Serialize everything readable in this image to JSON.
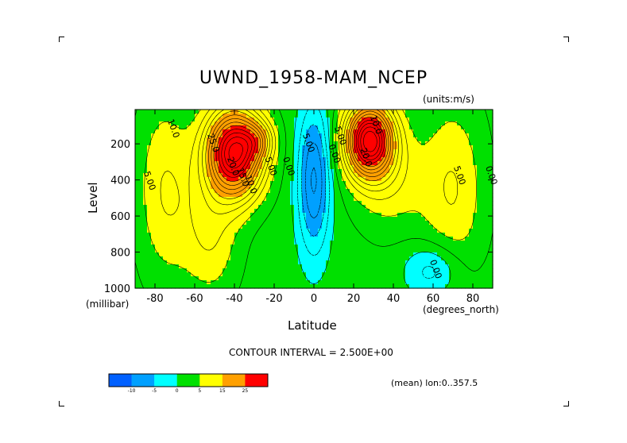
{
  "title": "UWND_1958-MAM_NCEP",
  "units_label": "(units:m/s)",
  "contour_interval_label": "CONTOUR INTERVAL = 2.500E+00",
  "mean_label": "(mean) lon:0..357.5",
  "chart_data": {
    "type": "heatmap",
    "title": "UWND_1958-MAM_NCEP",
    "xlabel": "Latitude",
    "xunit": "(degrees_north)",
    "ylabel": "Level",
    "yunit": "(millibar)",
    "xlim": [
      -90,
      90
    ],
    "ylim": [
      1000,
      10
    ],
    "x_ticks": [
      -80,
      -60,
      -40,
      -20,
      0,
      20,
      40,
      60,
      80
    ],
    "x_tick_labels": [
      "-80",
      "-60",
      "-40",
      "-20",
      "0",
      "20",
      "40",
      "60",
      "80"
    ],
    "y_ticks": [
      200,
      400,
      600,
      800,
      1000
    ],
    "y_tick_labels": [
      "200",
      "400",
      "600",
      "800",
      "1000"
    ],
    "contour_interval": 2.5,
    "contour_labels": [
      {
        "text": "10.0",
        "lat": -72,
        "lev": 120
      },
      {
        "text": "25.0",
        "lat": -52,
        "lev": 200
      },
      {
        "text": "20.0",
        "lat": -42,
        "lev": 330
      },
      {
        "text": "15.0",
        "lat": -37,
        "lev": 390
      },
      {
        "text": "10.0",
        "lat": -33,
        "lev": 430
      },
      {
        "text": "5.00",
        "lat": -23,
        "lev": 330
      },
      {
        "text": "0.00",
        "lat": -14,
        "lev": 330
      },
      {
        "text": "5.00",
        "lat": -4,
        "lev": 200
      },
      {
        "text": "0.00",
        "lat": 9,
        "lev": 260
      },
      {
        "text": "5.00",
        "lat": 12,
        "lev": 160
      },
      {
        "text": "10.0",
        "lat": 30,
        "lev": 100
      },
      {
        "text": "20.0",
        "lat": 25,
        "lev": 280
      },
      {
        "text": "5.00",
        "lat": 72,
        "lev": 380
      },
      {
        "text": "0.00",
        "lat": 60,
        "lev": 900
      },
      {
        "text": "5.00",
        "lat": -84,
        "lev": 410
      },
      {
        "text": "0.00",
        "lat": 88,
        "lev": 380
      }
    ],
    "jets": [
      {
        "lat": -40,
        "lev": 250,
        "amp": 34,
        "dlat": 14,
        "dlev": 240
      },
      {
        "lat": -28,
        "lev": 180,
        "amp": 8,
        "dlat": 8,
        "dlev": 100
      },
      {
        "lat": 28,
        "lev": 180,
        "amp": 34,
        "dlat": 12,
        "dlev": 200
      },
      {
        "lat": 38,
        "lev": 400,
        "amp": 5,
        "dlat": 18,
        "dlev": 300
      },
      {
        "lat": -52,
        "lev": 700,
        "amp": 6,
        "dlat": 14,
        "dlev": 350
      },
      {
        "lat": 0,
        "lev": 400,
        "amp": -12,
        "dlat": 8,
        "dlev": 400
      },
      {
        "lat": -75,
        "lev": 450,
        "amp": 6,
        "dlat": 14,
        "dlev": 500
      },
      {
        "lat": 70,
        "lev": 450,
        "amp": 6,
        "dlat": 16,
        "dlev": 500
      },
      {
        "lat": 60,
        "lev": 900,
        "amp": -6,
        "dlat": 14,
        "dlev": 150
      }
    ],
    "colorbar": {
      "levels": [
        -25,
        -15,
        -5,
        0,
        5,
        15,
        25
      ],
      "labels": [
        "-10",
        "-5",
        "0",
        "5",
        "15",
        "25"
      ],
      "colors": [
        "#0060ff",
        "#00a0ff",
        "#00ffff",
        "#00e000",
        "#ffff00",
        "#ffa000",
        "#ff0000"
      ]
    }
  }
}
